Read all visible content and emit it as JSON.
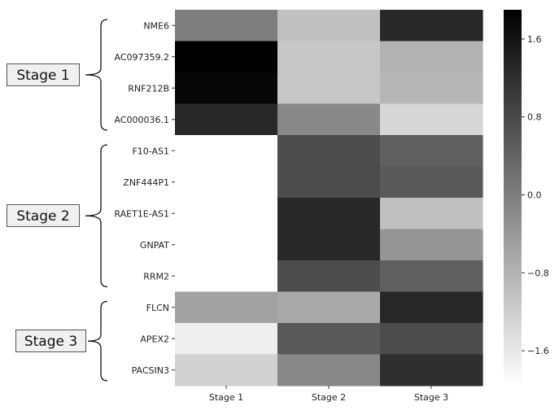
{
  "chart_data": {
    "type": "heatmap",
    "title": "",
    "xlabel": "",
    "ylabel": "",
    "columns": [
      "Stage 1",
      "Stage 2",
      "Stage 3"
    ],
    "rows": [
      "NME6",
      "AC097359.2",
      "RNF212B",
      "AC000036.1",
      "F10-AS1",
      "ZNF444P1",
      "RAET1E-AS1",
      "GNPAT",
      "RRM2",
      "FLCN",
      "APEX2",
      "PACSIN3"
    ],
    "values": [
      [
        0.0,
        -1.0,
        1.3
      ],
      [
        1.9,
        -1.1,
        -0.8
      ],
      [
        1.8,
        -1.1,
        -0.85
      ],
      [
        1.3,
        -0.15,
        -1.35
      ],
      [
        -1.95,
        0.75,
        0.45
      ],
      [
        -1.95,
        0.75,
        0.55
      ],
      [
        -1.95,
        1.3,
        -1.0
      ],
      [
        -1.95,
        1.3,
        -0.35
      ],
      [
        -1.95,
        0.75,
        0.45
      ],
      [
        -0.55,
        -0.65,
        1.3
      ],
      [
        -1.7,
        0.55,
        0.75
      ],
      [
        -1.25,
        -0.15,
        1.2
      ]
    ],
    "colorbar": {
      "ticks": [
        "1.6",
        "0.8",
        "0.0",
        "−0.8",
        "−1.6"
      ],
      "tick_values": [
        1.6,
        0.8,
        0.0,
        -0.8,
        -1.6
      ],
      "range": [
        -1.95,
        1.9
      ],
      "colormap": "Greys",
      "low_color": "#ffffff",
      "high_color": "#000000"
    },
    "groups": [
      {
        "label": "Stage 1",
        "first_row": 0,
        "last_row": 3
      },
      {
        "label": "Stage 2",
        "first_row": 4,
        "last_row": 8
      },
      {
        "label": "Stage 3",
        "first_row": 9,
        "last_row": 11
      }
    ]
  }
}
